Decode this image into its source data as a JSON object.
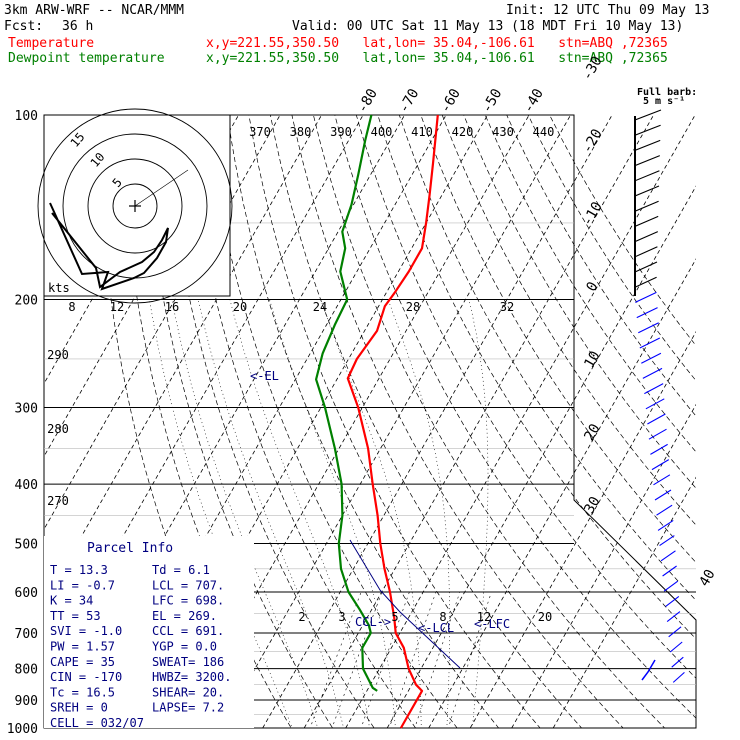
{
  "header": {
    "model": "3km ARW-WRF -- NCAR/MMM",
    "init": "Init: 12 UTC Thu 09 May 13",
    "fcst_label": "Fcst:",
    "fcst_value": "36 h",
    "valid": "Valid: 00 UTC Sat 11 May 13 (18 MDT Fri 10 May 13)",
    "line1_name": "Temperature",
    "line1_loc": "x,y=221.55,350.50   lat,lon= 35.04,-106.61   stn=ABQ ,72365",
    "line2_name": "Dewpoint temperature",
    "line2_loc": "x,y=221.55,350.50   lat,lon= 35.04,-106.61   stn=ABQ ,72365",
    "temp_color": "#ff0000",
    "dew_color": "#008000"
  },
  "chart_data": {
    "type": "line",
    "pressure_levels": [
      100,
      200,
      300,
      400,
      500,
      600,
      700,
      800,
      900,
      1000
    ],
    "temp_labels": [
      {
        "v": "-80",
        "t": -80
      },
      {
        "v": "-70",
        "t": -70
      },
      {
        "v": "-60",
        "t": -60
      },
      {
        "v": "-50",
        "t": -50
      },
      {
        "v": "-40",
        "t": -40
      },
      {
        "v": "-30",
        "t": -30
      },
      {
        "v": "-20",
        "t": -20
      },
      {
        "v": "-10",
        "t": -10
      },
      {
        "v": "0",
        "t": 0
      },
      {
        "v": "10",
        "t": 10
      },
      {
        "v": "20",
        "t": 20
      },
      {
        "v": "30",
        "t": 30
      },
      {
        "v": "40",
        "t": 40
      }
    ],
    "theta_labels_top": [
      "370",
      "380",
      "390",
      "400",
      "410",
      "420",
      "430",
      "440"
    ],
    "theta_labels_left": [
      "290",
      "280",
      "270"
    ],
    "mixing_ratio_labels": [
      "2",
      "3",
      "5",
      "8",
      "12",
      "20"
    ],
    "hodo_speed_labels": [
      "8",
      "12",
      "16",
      "20",
      "24",
      "28",
      "32"
    ],
    "hodo_ring_labels": [
      "5",
      "10",
      "15"
    ],
    "hodo_units": "kts",
    "wind_units": "Full barb:\n5 m s⁻¹",
    "series": [
      {
        "name": "Temperature",
        "color": "#ff0000",
        "points": [
          {
            "p": 1000,
            "t": 13.3
          },
          {
            "p": 870,
            "t": 13.3
          },
          {
            "p": 850,
            "t": 11.0
          },
          {
            "p": 800,
            "t": 7.0
          },
          {
            "p": 740,
            "t": 3.0
          },
          {
            "p": 700,
            "t": -1.0
          },
          {
            "p": 660,
            "t": -3.5
          },
          {
            "p": 600,
            "t": -8.0
          },
          {
            "p": 550,
            "t": -12.5
          },
          {
            "p": 500,
            "t": -17.0
          },
          {
            "p": 450,
            "t": -21.5
          },
          {
            "p": 400,
            "t": -27.0
          },
          {
            "p": 350,
            "t": -33.0
          },
          {
            "p": 300,
            "t": -41.0
          },
          {
            "p": 269,
            "t": -47.5
          },
          {
            "p": 250,
            "t": -48.0
          },
          {
            "p": 225,
            "t": -47.0
          },
          {
            "p": 205,
            "t": -48.5
          },
          {
            "p": 195,
            "t": -48.0
          },
          {
            "p": 180,
            "t": -47.5
          },
          {
            "p": 165,
            "t": -47.5
          },
          {
            "p": 150,
            "t": -50.0
          },
          {
            "p": 135,
            "t": -53.0
          },
          {
            "p": 120,
            "t": -56.5
          },
          {
            "p": 100,
            "t": -62.0
          }
        ]
      },
      {
        "name": "Dewpoint temperature",
        "color": "#008000",
        "points": [
          {
            "p": 870,
            "t": 2.5
          },
          {
            "p": 860,
            "t": 1.0
          },
          {
            "p": 800,
            "t": -4.0
          },
          {
            "p": 740,
            "t": -7.0
          },
          {
            "p": 700,
            "t": -7.0
          },
          {
            "p": 680,
            "t": -8.5
          },
          {
            "p": 640,
            "t": -13.0
          },
          {
            "p": 600,
            "t": -18.0
          },
          {
            "p": 550,
            "t": -23.0
          },
          {
            "p": 500,
            "t": -27.0
          },
          {
            "p": 450,
            "t": -30.0
          },
          {
            "p": 400,
            "t": -34.5
          },
          {
            "p": 350,
            "t": -41.0
          },
          {
            "p": 300,
            "t": -49.0
          },
          {
            "p": 270,
            "t": -55.0
          },
          {
            "p": 245,
            "t": -57.0
          },
          {
            "p": 220,
            "t": -58.0
          },
          {
            "p": 200,
            "t": -58.5
          },
          {
            "p": 180,
            "t": -64.0
          },
          {
            "p": 165,
            "t": -66.0
          },
          {
            "p": 155,
            "t": -69.0
          },
          {
            "p": 140,
            "t": -70.5
          },
          {
            "p": 125,
            "t": -73.0
          },
          {
            "p": 110,
            "t": -76.0
          },
          {
            "p": 100,
            "t": -78.0
          }
        ]
      }
    ],
    "annotations": [
      {
        "text": "<-EL",
        "p": 269
      },
      {
        "text": "CCL->",
        "p": 691
      },
      {
        "text": "<-LCL",
        "p": 707
      },
      {
        "text": "<-LFC",
        "p": 698
      }
    ],
    "wind_barbs_count": 38
  },
  "parcel_info": {
    "title": "Parcel Info",
    "rows": [
      [
        "T   =    13.3",
        "Td  =   6.1"
      ],
      [
        "LI  =    -0.7",
        "LCL =  707."
      ],
      [
        "K   =      34",
        "LFC =  698."
      ],
      [
        "TT  =      53",
        "EL  =  269."
      ],
      [
        "SVI =    -1.0",
        "CCL =  691."
      ],
      [
        "PW  =    1.57",
        "YGP =   0.0"
      ],
      [
        "CAPE =     35",
        "SWEAT=  186"
      ],
      [
        "CIN  =   -170",
        "HWBZ= 3200."
      ],
      [
        "Tc  =    16.5",
        "SHEAR=  20."
      ],
      [
        "SREH =      0",
        "LAPSE=  7.2"
      ],
      [
        "CELL = 032/07",
        ""
      ]
    ]
  },
  "colors": {
    "grid": "#000000",
    "dashed": "#000000",
    "parcel": "#000080",
    "barbs": "#0000ff",
    "isobar_light": "#bbbbbb"
  }
}
